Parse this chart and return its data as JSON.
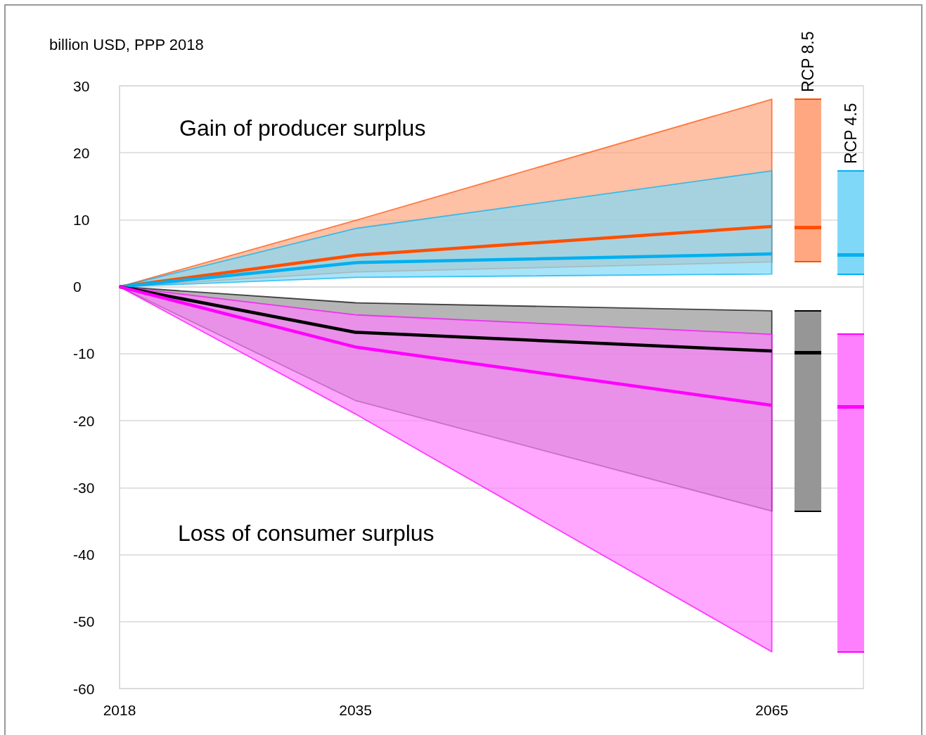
{
  "chart_data": {
    "type": "line",
    "ylabel": "billion USD, PPP 2018",
    "annotations": [
      "Gain of producer surplus",
      "Loss of consumer surplus"
    ],
    "x": [
      2018,
      2035,
      2065
    ],
    "xlim": [
      2018,
      2071.6
    ],
    "xticks": [
      2018,
      2035,
      2065
    ],
    "ylim": [
      -60,
      30
    ],
    "yticks": [
      -60,
      -50,
      -40,
      -30,
      -20,
      -10,
      0,
      10,
      20,
      30
    ],
    "grid": "y",
    "series": [
      {
        "name": "RCP 8.5",
        "color": "#ff4f00",
        "values": [
          0,
          4.7,
          9.0
        ],
        "lower": [
          0,
          2.2,
          3.7
        ],
        "upper": [
          0,
          9.9,
          28.0
        ]
      },
      {
        "name": "RCP 4.5",
        "color": "#00b0f0",
        "values": [
          0,
          3.6,
          4.9
        ],
        "lower": [
          0,
          1.4,
          1.9
        ],
        "upper": [
          0,
          8.7,
          17.3
        ]
      },
      {
        "color": "#000000",
        "values": [
          0,
          -6.8,
          -9.6
        ],
        "lower": [
          0,
          -17.0,
          -33.5
        ],
        "upper": [
          0,
          -2.4,
          -3.6
        ]
      },
      {
        "color": "#ff00ff",
        "values": [
          0,
          -9.0,
          -17.7
        ],
        "lower": [
          0,
          -19.0,
          -54.5
        ],
        "upper": [
          0,
          -4.2,
          -7.1
        ]
      }
    ]
  }
}
